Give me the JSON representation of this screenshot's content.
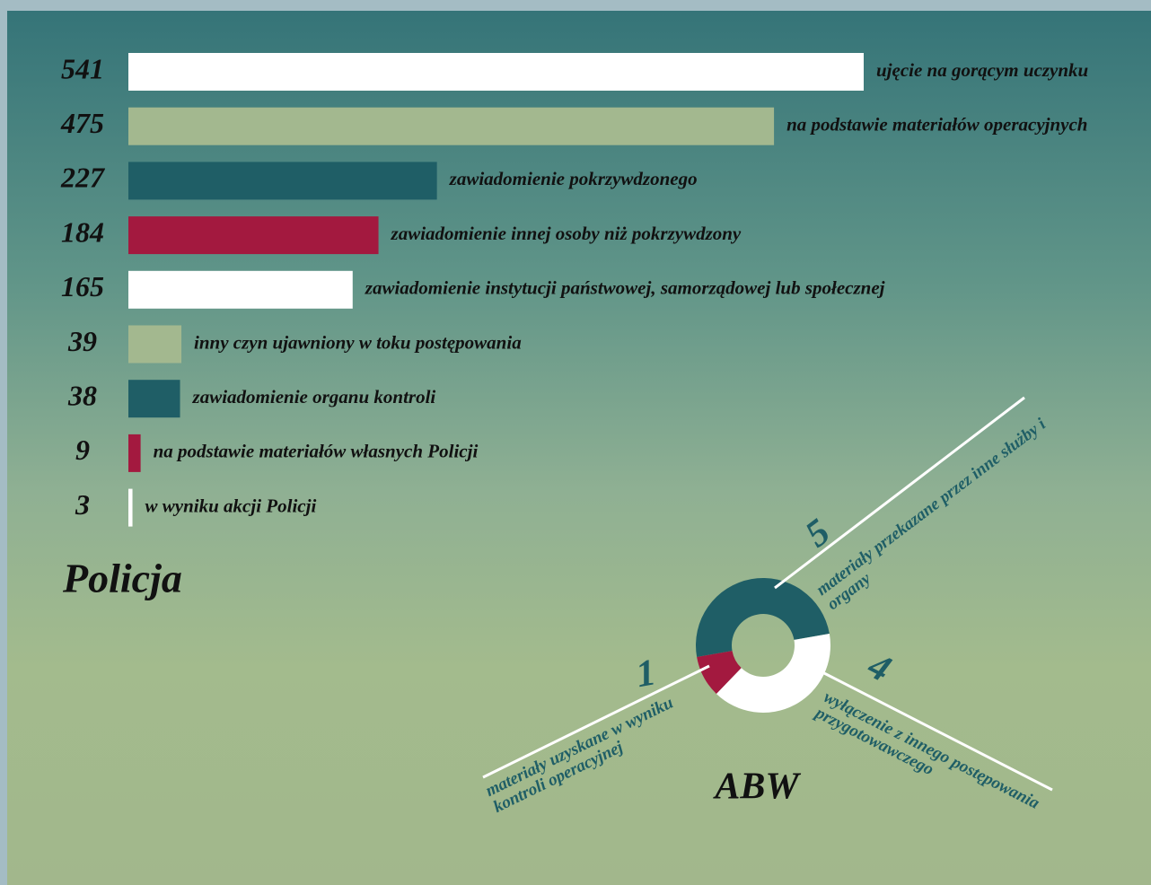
{
  "chart_data": [
    {
      "type": "bar",
      "title": "Policja",
      "categories": [
        "ujęcie na gorącym uczynku",
        "na podstawie materiałów operacyjnych",
        "zawiadomienie pokrzywdzonego",
        "zawiadomienie innej osoby niż pokrzywdzony",
        "zawiadomienie instytucji państwowej, samorządowej lub społecznej",
        "inny czyn ujawniony w toku postępowania",
        "zawiadomienie organu kontroli",
        "na podstawie materiałów własnych Policji",
        "w wyniku akcji Policji"
      ],
      "values": [
        541,
        475,
        227,
        184,
        165,
        39,
        38,
        9,
        3
      ],
      "colors": [
        "#ffffff",
        "#a3b88f",
        "#1f5e66",
        "#a3193f",
        "#ffffff",
        "#a3b88f",
        "#1f5e66",
        "#a3193f",
        "#ffffff"
      ]
    },
    {
      "type": "donut",
      "title": "ABW",
      "categories": [
        "materiały przekazane przez inne służby i organy",
        "wyłączenie z innego postępowania przygotowawczego",
        "materiały uzyskane w wyniku kontroli operacyjnej"
      ],
      "values": [
        5,
        4,
        1
      ],
      "colors": [
        "#1f5e66",
        "#ffffff",
        "#a3193f"
      ]
    }
  ]
}
